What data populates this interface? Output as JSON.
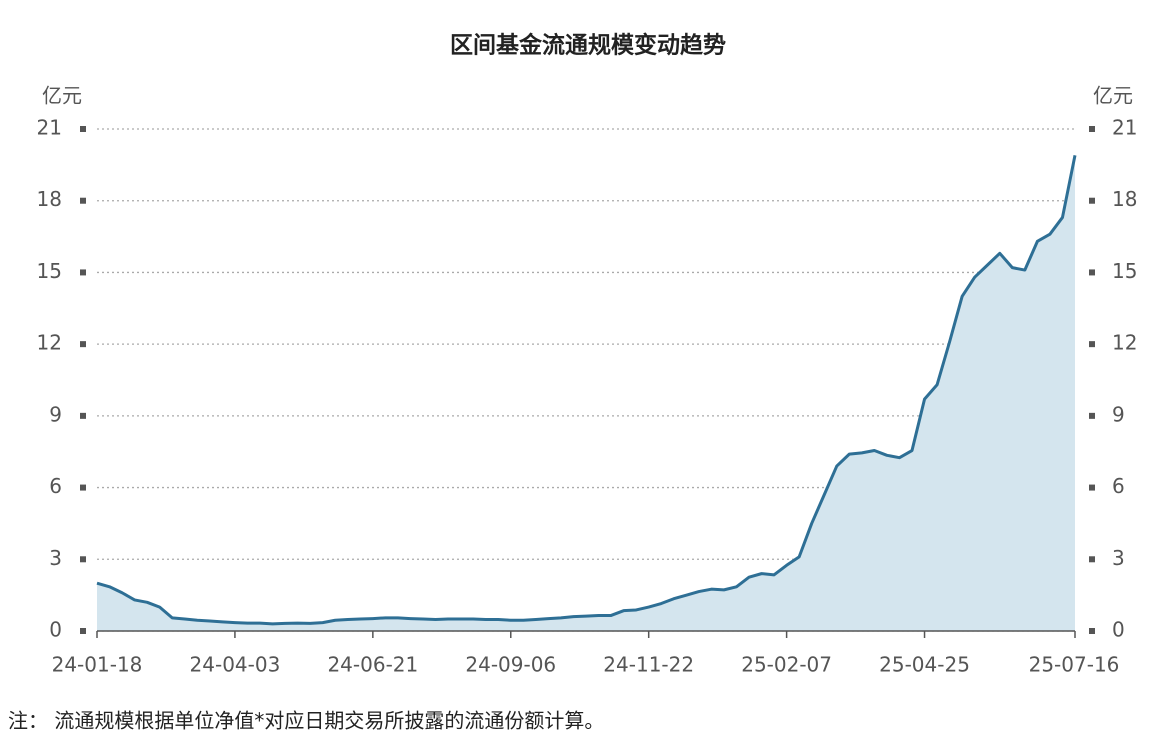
{
  "chart_data": {
    "type": "area",
    "title": "区间基金流通规模变动趋势",
    "ylabel": "亿元",
    "y2label": "亿元",
    "footnote": "注：  流通规模根据单位净值*对应日期交易所披露的流通份额计算。",
    "categories": [
      "24-01-18",
      null,
      null,
      null,
      null,
      null,
      null,
      null,
      null,
      null,
      null,
      "24-04-03",
      null,
      null,
      null,
      null,
      null,
      null,
      null,
      null,
      null,
      null,
      "24-06-21",
      null,
      null,
      null,
      null,
      null,
      null,
      null,
      null,
      null,
      null,
      "24-09-06",
      null,
      null,
      null,
      null,
      null,
      null,
      null,
      null,
      null,
      null,
      "24-11-22",
      null,
      null,
      null,
      null,
      null,
      null,
      null,
      null,
      null,
      null,
      "25-02-07",
      null,
      null,
      null,
      null,
      null,
      null,
      null,
      null,
      null,
      null,
      "25-04-25",
      null,
      null,
      null,
      null,
      null,
      null,
      null,
      null,
      null,
      null,
      null,
      "25-07-16"
    ],
    "series": [
      {
        "name": "流通规模",
        "color": "#2e6f95",
        "fill": "#d4e5ee",
        "values": [
          2.0,
          1.85,
          1.6,
          1.3,
          1.2,
          1.0,
          0.55,
          0.5,
          0.45,
          0.42,
          0.38,
          0.35,
          0.33,
          0.33,
          0.3,
          0.32,
          0.33,
          0.32,
          0.35,
          0.45,
          0.48,
          0.5,
          0.52,
          0.55,
          0.55,
          0.52,
          0.5,
          0.48,
          0.5,
          0.5,
          0.5,
          0.48,
          0.48,
          0.45,
          0.45,
          0.48,
          0.52,
          0.55,
          0.6,
          0.62,
          0.65,
          0.65,
          0.85,
          0.88,
          1.0,
          1.15,
          1.35,
          1.5,
          1.65,
          1.75,
          1.72,
          1.85,
          2.25,
          2.4,
          2.35,
          2.75,
          3.1,
          4.5,
          5.7,
          6.9,
          7.4,
          7.45,
          7.55,
          7.35,
          7.25,
          7.55,
          9.7,
          10.3,
          12.1,
          14.0,
          14.8,
          15.3,
          15.8,
          15.2,
          15.1,
          16.3,
          16.6,
          17.3,
          19.9
        ]
      }
    ],
    "ylim": [
      0,
      21
    ],
    "yticks": [
      0,
      3,
      6,
      9,
      12,
      15,
      18,
      21
    ],
    "y2lim": [
      0,
      21
    ],
    "y2ticks": [
      0,
      3,
      6,
      9,
      12,
      15,
      18,
      21
    ],
    "grid": true
  }
}
